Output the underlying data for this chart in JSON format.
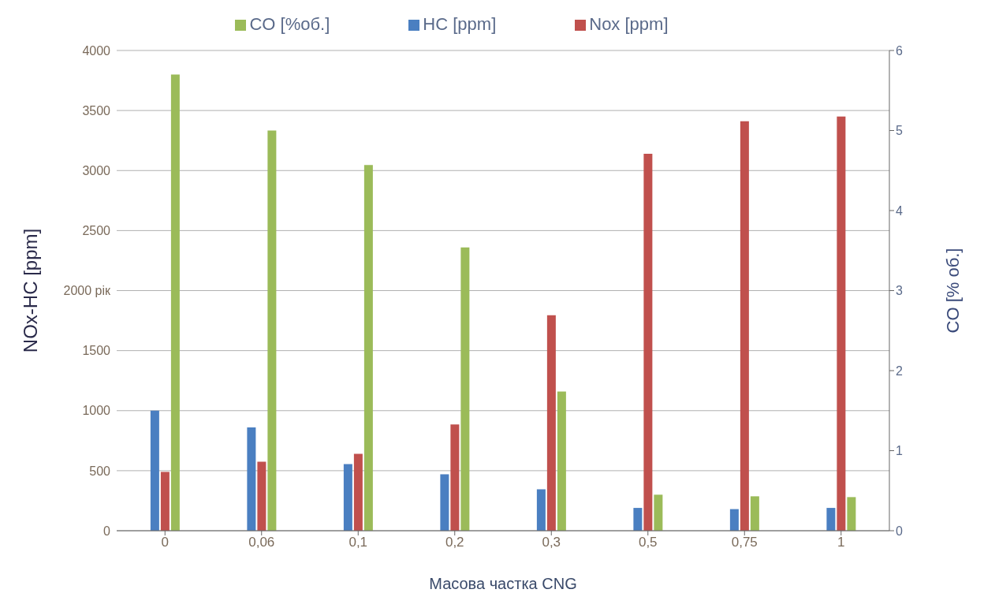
{
  "chart_data": {
    "type": "bar",
    "xlabel": "Масова частка CNG",
    "ylabel": "NOx-HC [ppm]",
    "y2label": "CO [% об.]",
    "categories": [
      "0",
      "0,06",
      "0,1",
      "0,2",
      "0,3",
      "0,5",
      "0,75",
      "1"
    ],
    "series": [
      {
        "name": "HC [ppm]",
        "color": "#4a7fc1",
        "values": [
          1000,
          860,
          555,
          470,
          345,
          190,
          180,
          190
        ]
      },
      {
        "name": "Nox [ppm]",
        "color": "#c0504d",
        "values": [
          490,
          575,
          640,
          885,
          1795,
          3140,
          3410,
          3450
        ]
      },
      {
        "name": "CO [%об.]",
        "color": "#9bbb59",
        "axis": "y2",
        "values": [
          5.7,
          5.0,
          4.57,
          3.54,
          1.74,
          0.45,
          0.43,
          0.42
        ]
      }
    ],
    "ylim": [
      0,
      4000
    ],
    "yticks": [
      0,
      500,
      1000,
      1500,
      {
        "value": 2000,
        "label": "2000 рік"
      },
      2500,
      3000,
      3500,
      4000
    ],
    "y2lim": [
      0,
      6
    ],
    "y2ticks": [
      0,
      1,
      2,
      3,
      4,
      5,
      6
    ],
    "grid": "y",
    "legend": "top"
  }
}
